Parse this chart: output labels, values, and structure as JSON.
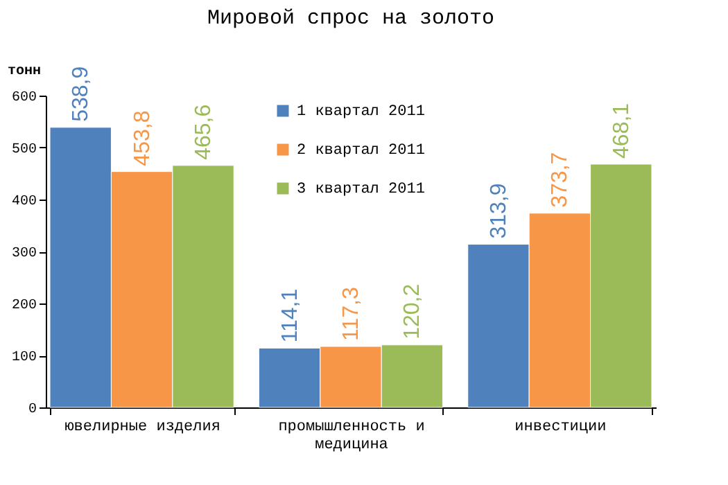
{
  "chart_data": {
    "type": "bar",
    "title": "Мировой спрос на золото",
    "ylabel": "тонн",
    "categories": [
      "ювелирные изделия",
      "промышленность и медицина",
      "инвестиции"
    ],
    "series": [
      {
        "name": "1 квартал 2011",
        "color": "#4f81bd",
        "values": [
          538.9,
          114.1,
          313.9
        ],
        "value_labels": [
          "538,9",
          "114,1",
          "313,9"
        ]
      },
      {
        "name": "2 квартал 2011",
        "color": "#f79646",
        "values": [
          453.8,
          117.3,
          373.7
        ],
        "value_labels": [
          "453,8",
          "117,3",
          "373,7"
        ]
      },
      {
        "name": "3 квартал 2011",
        "color": "#9bbb59",
        "values": [
          465.6,
          120.2,
          468.1
        ],
        "value_labels": [
          "465,6",
          "120,2",
          "468,1"
        ]
      }
    ],
    "ylim": [
      0,
      600
    ],
    "yticks": [
      0,
      100,
      200,
      300,
      400,
      500,
      600
    ],
    "grid": false,
    "legend": "top"
  }
}
